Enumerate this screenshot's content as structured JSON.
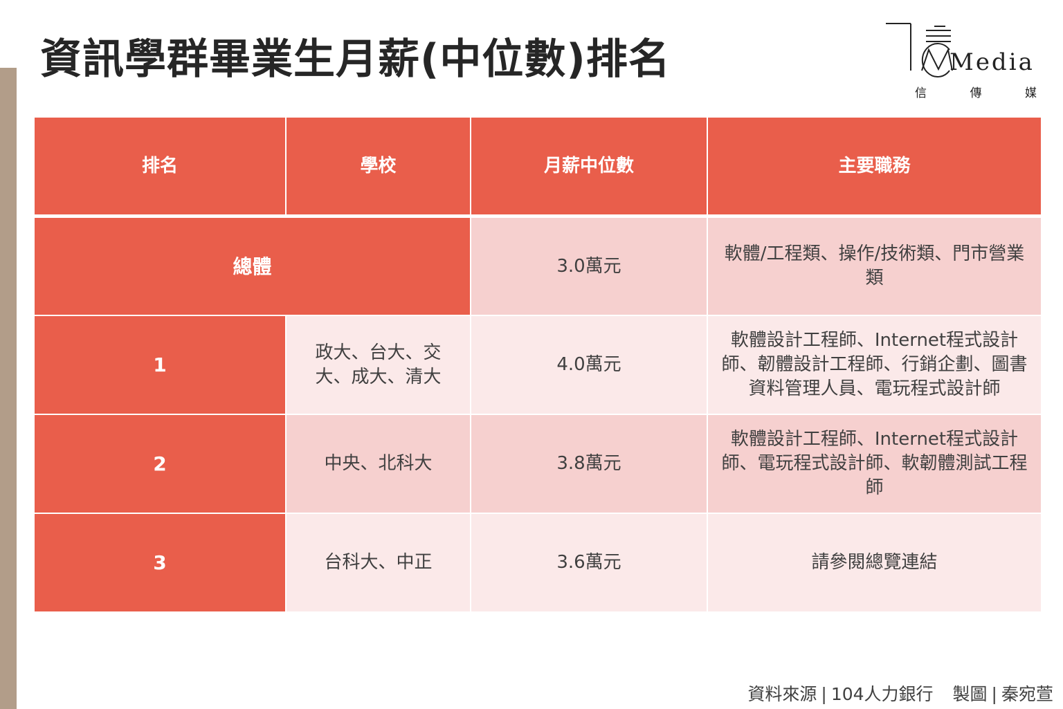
{
  "title": "資訊學群畢業生月薪(中位數)排名",
  "logo": {
    "word": "Media",
    "sub": [
      "信",
      "傳",
      "媒"
    ]
  },
  "table": {
    "headers": [
      "排名",
      "學校",
      "月薪中位數",
      "主要職務"
    ],
    "overall": {
      "label": "總體",
      "salary": "3.0萬元",
      "jobs": "軟體/工程類、操作/技術類、門市營業類"
    },
    "rows": [
      {
        "rank": "1",
        "school": "政大、台大、交大、成大、清大",
        "salary": "4.0萬元",
        "jobs": "軟體設計工程師、Internet程式設計師、韌體設計工程師、行銷企劃、圖書資料管理人員、電玩程式設計師"
      },
      {
        "rank": "2",
        "school": "中央、北科大",
        "salary": "3.8萬元",
        "jobs": "軟體設計工程師、Internet程式設計師、電玩程式設計師、軟韌體測試工程師"
      },
      {
        "rank": "3",
        "school": "台科大、中正",
        "salary": "3.6萬元",
        "jobs": "請參閱總覽連結"
      }
    ]
  },
  "footer": {
    "source_label": "資料來源",
    "source": "104人力銀行",
    "made_label": "製圖",
    "author": "秦宛萱",
    "separator": "|"
  },
  "colors": {
    "header": "#e95e4b",
    "row_dark": "#f6d0cf",
    "row_light": "#fbe9e9",
    "side_bar": "#b29d89"
  }
}
